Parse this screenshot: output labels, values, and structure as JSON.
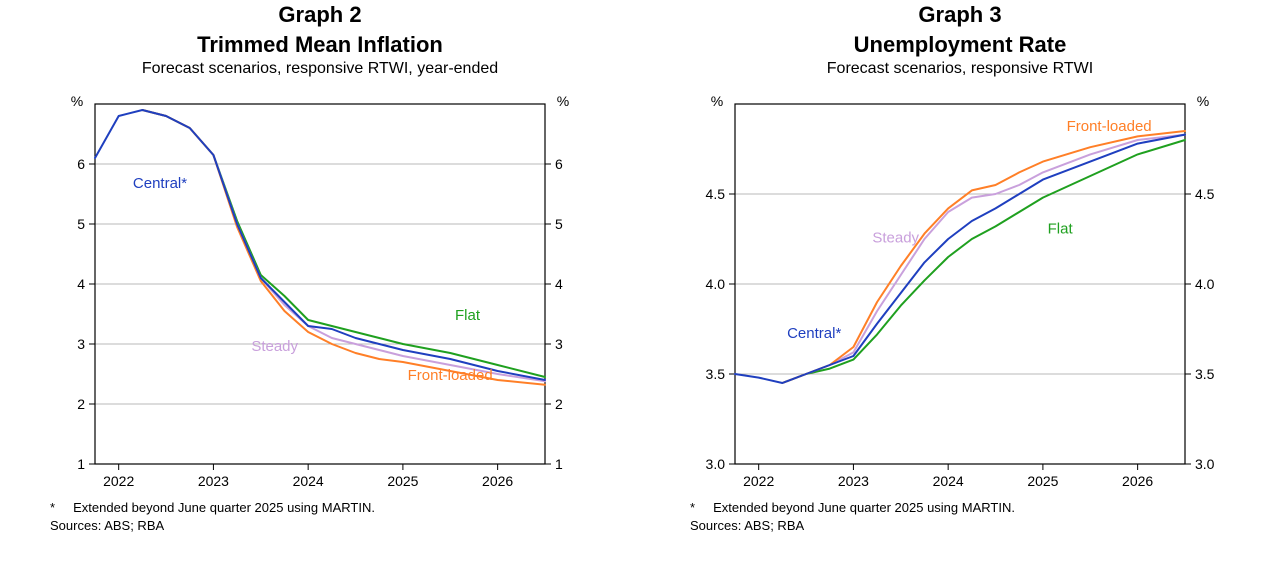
{
  "graph2": {
    "type": "line",
    "graph_label": "Graph 2",
    "title": "Trimmed Mean Inflation",
    "subtitle": "Forecast scenarios, responsive RTWI, year-ended",
    "footnote_mark": "*",
    "footnote_text": "Extended beyond June quarter 2025 using MARTIN.",
    "sources": "Sources: ABS; RBA",
    "colors": {
      "axis": "#000000",
      "grid": "#b8b8b8",
      "background": "#ffffff",
      "central": "#1f3fbf",
      "steady": "#c9a0dc",
      "flat": "#1fa01f",
      "frontloaded": "#ff7f27"
    },
    "text_color": "#000000",
    "axis_label": "%",
    "axis_fontsize": 14,
    "tick_fontsize": 14,
    "title_fontsize": 22,
    "subtitle_fontsize": 16,
    "line_width": 2,
    "x": {
      "min": 2021.75,
      "max": 2026.5,
      "ticks": [
        2022,
        2023,
        2024,
        2025,
        2026
      ],
      "tick_labels": [
        "2022",
        "2023",
        "2024",
        "2025",
        "2026"
      ]
    },
    "y": {
      "min": 1,
      "max": 7,
      "ticks": [
        1,
        2,
        3,
        4,
        5,
        6
      ],
      "tick_labels": [
        "1",
        "2",
        "3",
        "4",
        "5",
        "6"
      ]
    },
    "series": {
      "central": {
        "label": "Central*",
        "points": [
          [
            2021.75,
            6.1
          ],
          [
            2022.0,
            6.8
          ],
          [
            2022.25,
            6.9
          ],
          [
            2022.5,
            6.8
          ],
          [
            2022.75,
            6.6
          ],
          [
            2023.0,
            6.15
          ],
          [
            2023.25,
            5.0
          ],
          [
            2023.5,
            4.1
          ],
          [
            2023.75,
            3.7
          ],
          [
            2024.0,
            3.3
          ],
          [
            2024.25,
            3.25
          ],
          [
            2024.5,
            3.1
          ],
          [
            2024.75,
            3.0
          ],
          [
            2025.0,
            2.9
          ],
          [
            2025.5,
            2.75
          ],
          [
            2026.0,
            2.55
          ],
          [
            2026.5,
            2.4
          ]
        ]
      },
      "steady": {
        "label": "Steady",
        "points": [
          [
            2022.25,
            6.9
          ],
          [
            2022.5,
            6.8
          ],
          [
            2022.75,
            6.6
          ],
          [
            2023.0,
            6.15
          ],
          [
            2023.25,
            5.0
          ],
          [
            2023.5,
            4.1
          ],
          [
            2023.75,
            3.65
          ],
          [
            2024.0,
            3.3
          ],
          [
            2024.25,
            3.1
          ],
          [
            2024.5,
            3.0
          ],
          [
            2024.75,
            2.9
          ],
          [
            2025.0,
            2.8
          ],
          [
            2025.5,
            2.65
          ],
          [
            2026.0,
            2.5
          ],
          [
            2026.5,
            2.38
          ]
        ]
      },
      "flat": {
        "label": "Flat",
        "points": [
          [
            2022.25,
            6.9
          ],
          [
            2022.5,
            6.8
          ],
          [
            2022.75,
            6.6
          ],
          [
            2023.0,
            6.15
          ],
          [
            2023.25,
            5.05
          ],
          [
            2023.5,
            4.15
          ],
          [
            2023.75,
            3.8
          ],
          [
            2024.0,
            3.4
          ],
          [
            2024.25,
            3.3
          ],
          [
            2024.5,
            3.2
          ],
          [
            2024.75,
            3.1
          ],
          [
            2025.0,
            3.0
          ],
          [
            2025.5,
            2.85
          ],
          [
            2026.0,
            2.65
          ],
          [
            2026.5,
            2.45
          ]
        ]
      },
      "frontloaded": {
        "label": "Front-loaded",
        "points": [
          [
            2022.25,
            6.9
          ],
          [
            2022.5,
            6.8
          ],
          [
            2022.75,
            6.6
          ],
          [
            2023.0,
            6.15
          ],
          [
            2023.25,
            4.95
          ],
          [
            2023.5,
            4.05
          ],
          [
            2023.75,
            3.55
          ],
          [
            2024.0,
            3.2
          ],
          [
            2024.25,
            3.0
          ],
          [
            2024.5,
            2.85
          ],
          [
            2024.75,
            2.75
          ],
          [
            2025.0,
            2.7
          ],
          [
            2025.5,
            2.55
          ],
          [
            2026.0,
            2.4
          ],
          [
            2026.5,
            2.32
          ]
        ]
      }
    },
    "series_labels": [
      {
        "key": "central",
        "text": "Central*",
        "x": 2022.15,
        "y": 5.6
      },
      {
        "key": "steady",
        "text": "Steady",
        "x": 2023.4,
        "y": 2.88
      },
      {
        "key": "flat",
        "text": "Flat",
        "x": 2025.55,
        "y": 3.4
      },
      {
        "key": "frontloaded",
        "text": "Front-loaded",
        "x": 2025.05,
        "y": 2.4
      }
    ]
  },
  "graph3": {
    "type": "line",
    "graph_label": "Graph 3",
    "title": "Unemployment Rate",
    "subtitle": "Forecast scenarios, responsive RTWI",
    "footnote_mark": "*",
    "footnote_text": "Extended beyond June quarter 2025 using MARTIN.",
    "sources": "Sources: ABS; RBA",
    "colors": {
      "axis": "#000000",
      "grid": "#b8b8b8",
      "background": "#ffffff",
      "central": "#1f3fbf",
      "steady": "#c9a0dc",
      "flat": "#1fa01f",
      "frontloaded": "#ff7f27"
    },
    "text_color": "#000000",
    "axis_label": "%",
    "axis_fontsize": 14,
    "tick_fontsize": 14,
    "title_fontsize": 22,
    "subtitle_fontsize": 16,
    "line_width": 2,
    "x": {
      "min": 2021.75,
      "max": 2026.5,
      "ticks": [
        2022,
        2023,
        2024,
        2025,
        2026
      ],
      "tick_labels": [
        "2022",
        "2023",
        "2024",
        "2025",
        "2026"
      ]
    },
    "y": {
      "min": 3.0,
      "max": 5.0,
      "ticks": [
        3.0,
        3.5,
        4.0,
        4.5
      ],
      "tick_labels": [
        "3.0",
        "3.5",
        "4.0",
        "4.5"
      ]
    },
    "series": {
      "central": {
        "label": "Central*",
        "points": [
          [
            2021.75,
            3.5
          ],
          [
            2022.0,
            3.48
          ],
          [
            2022.25,
            3.45
          ],
          [
            2022.5,
            3.5
          ],
          [
            2022.75,
            3.55
          ],
          [
            2023.0,
            3.6
          ],
          [
            2023.25,
            3.78
          ],
          [
            2023.5,
            3.95
          ],
          [
            2023.75,
            4.12
          ],
          [
            2024.0,
            4.25
          ],
          [
            2024.25,
            4.35
          ],
          [
            2024.5,
            4.42
          ],
          [
            2024.75,
            4.5
          ],
          [
            2025.0,
            4.58
          ],
          [
            2025.5,
            4.68
          ],
          [
            2026.0,
            4.78
          ],
          [
            2026.5,
            4.83
          ]
        ]
      },
      "steady": {
        "label": "Steady",
        "points": [
          [
            2022.25,
            3.45
          ],
          [
            2022.5,
            3.5
          ],
          [
            2022.75,
            3.55
          ],
          [
            2023.0,
            3.62
          ],
          [
            2023.25,
            3.85
          ],
          [
            2023.5,
            4.05
          ],
          [
            2023.75,
            4.25
          ],
          [
            2024.0,
            4.4
          ],
          [
            2024.25,
            4.48
          ],
          [
            2024.5,
            4.5
          ],
          [
            2024.75,
            4.55
          ],
          [
            2025.0,
            4.62
          ],
          [
            2025.5,
            4.72
          ],
          [
            2026.0,
            4.8
          ],
          [
            2026.5,
            4.83
          ]
        ]
      },
      "flat": {
        "label": "Flat",
        "points": [
          [
            2022.25,
            3.45
          ],
          [
            2022.5,
            3.5
          ],
          [
            2022.75,
            3.53
          ],
          [
            2023.0,
            3.58
          ],
          [
            2023.25,
            3.72
          ],
          [
            2023.5,
            3.88
          ],
          [
            2023.75,
            4.02
          ],
          [
            2024.0,
            4.15
          ],
          [
            2024.25,
            4.25
          ],
          [
            2024.5,
            4.32
          ],
          [
            2024.75,
            4.4
          ],
          [
            2025.0,
            4.48
          ],
          [
            2025.5,
            4.6
          ],
          [
            2026.0,
            4.72
          ],
          [
            2026.5,
            4.8
          ]
        ]
      },
      "frontloaded": {
        "label": "Front-loaded",
        "points": [
          [
            2022.25,
            3.45
          ],
          [
            2022.5,
            3.5
          ],
          [
            2022.75,
            3.55
          ],
          [
            2023.0,
            3.65
          ],
          [
            2023.25,
            3.9
          ],
          [
            2023.5,
            4.1
          ],
          [
            2023.75,
            4.28
          ],
          [
            2024.0,
            4.42
          ],
          [
            2024.25,
            4.52
          ],
          [
            2024.5,
            4.55
          ],
          [
            2024.75,
            4.62
          ],
          [
            2025.0,
            4.68
          ],
          [
            2025.5,
            4.76
          ],
          [
            2026.0,
            4.82
          ],
          [
            2026.5,
            4.85
          ]
        ]
      }
    },
    "series_labels": [
      {
        "key": "central",
        "text": "Central*",
        "x": 2022.3,
        "y": 3.7
      },
      {
        "key": "steady",
        "text": "Steady",
        "x": 2023.2,
        "y": 4.23
      },
      {
        "key": "flat",
        "text": "Flat",
        "x": 2025.05,
        "y": 4.28
      },
      {
        "key": "frontloaded",
        "text": "Front-loaded",
        "x": 2025.25,
        "y": 4.85
      }
    ]
  }
}
